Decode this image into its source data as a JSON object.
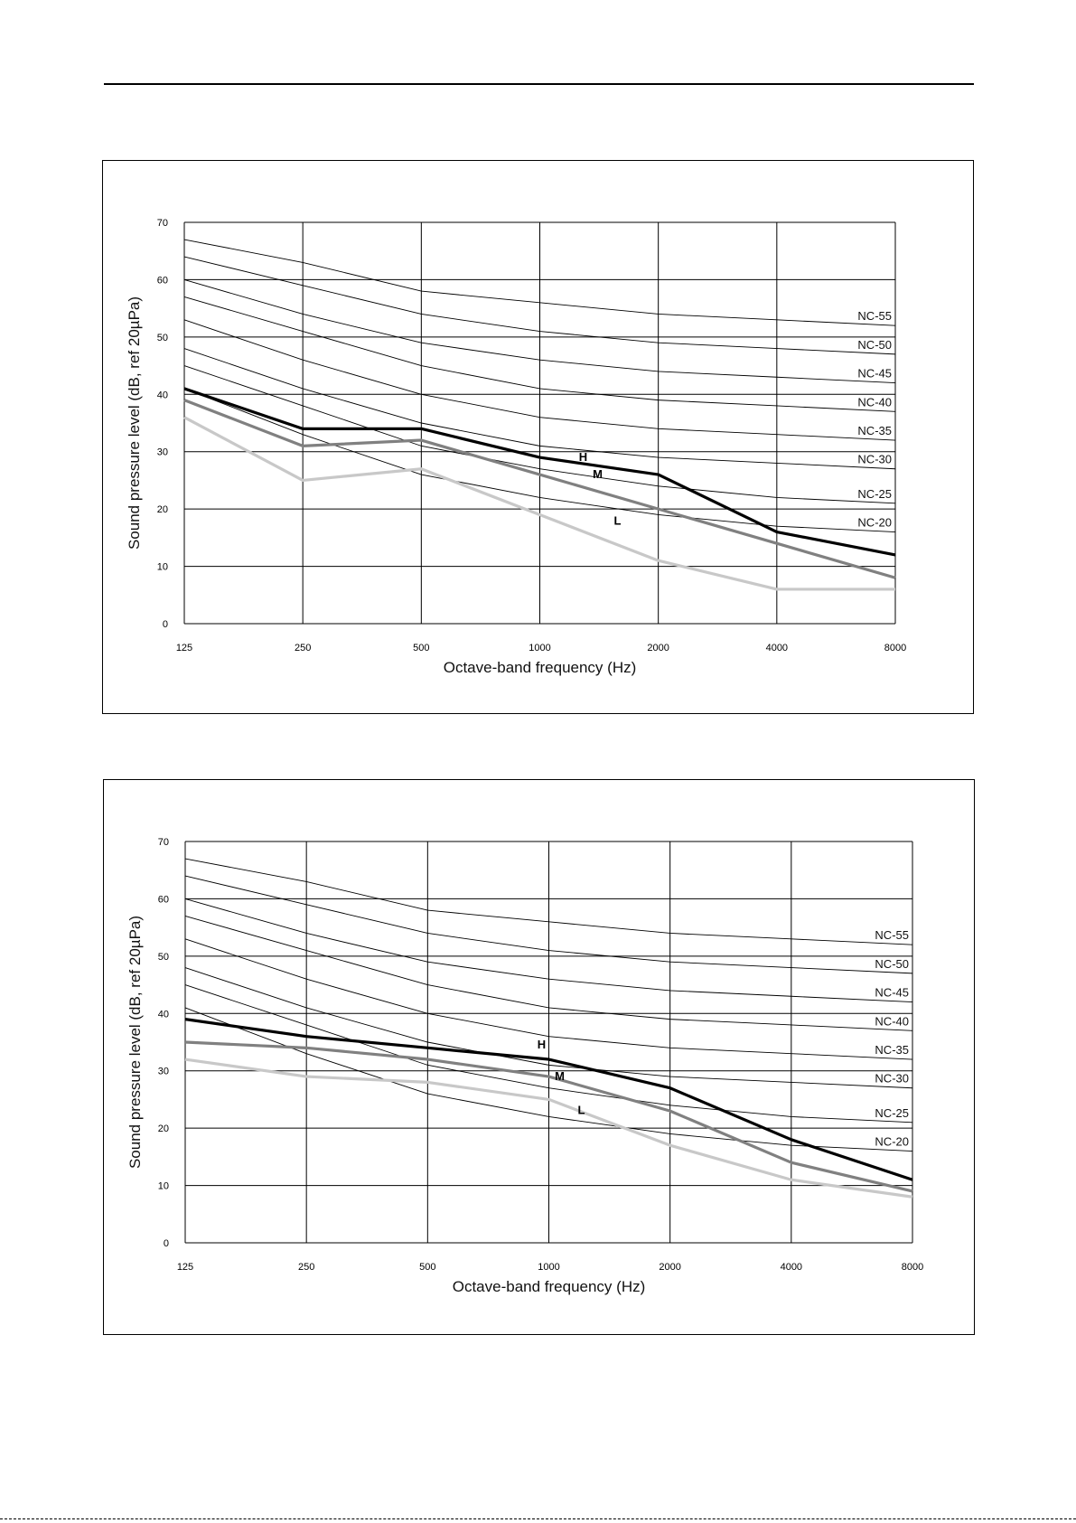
{
  "chart_data": [
    {
      "type": "line",
      "x_scale": "log",
      "x": [
        125,
        250,
        500,
        1000,
        2000,
        4000,
        8000
      ],
      "x_tick_labels": [
        "125",
        "250",
        "500",
        "1000",
        "2000",
        "4000",
        "8000"
      ],
      "y_ticks": [
        0,
        10,
        20,
        30,
        40,
        50,
        60,
        70
      ],
      "ylim": [
        0,
        70
      ],
      "xlabel": "Octave-band frequency (Hz)",
      "ylabel": "Sound pressure level (dB, ref 20µPa)",
      "grid": true,
      "nc_curves": [
        {
          "name": "NC-55",
          "values": [
            67,
            63,
            58,
            56,
            54,
            53,
            52
          ]
        },
        {
          "name": "NC-50",
          "values": [
            64,
            59,
            54,
            51,
            49,
            48,
            47
          ]
        },
        {
          "name": "NC-45",
          "values": [
            60,
            54,
            49,
            46,
            44,
            43,
            42
          ]
        },
        {
          "name": "NC-40",
          "values": [
            57,
            51,
            45,
            41,
            39,
            38,
            37
          ]
        },
        {
          "name": "NC-35",
          "values": [
            53,
            46,
            40,
            36,
            34,
            33,
            32
          ]
        },
        {
          "name": "NC-30",
          "values": [
            48,
            41,
            35,
            31,
            29,
            28,
            27
          ]
        },
        {
          "name": "NC-25",
          "values": [
            45,
            38,
            31,
            27,
            24,
            22,
            21
          ]
        },
        {
          "name": "NC-20",
          "values": [
            41,
            33,
            26,
            22,
            19,
            17,
            16
          ]
        }
      ],
      "series": [
        {
          "name": "H",
          "color": "#000000",
          "values": [
            41,
            34,
            34,
            29,
            26,
            16,
            12
          ]
        },
        {
          "name": "M",
          "color": "#808080",
          "values": [
            39,
            31,
            32,
            26,
            20,
            14,
            8
          ]
        },
        {
          "name": "L",
          "color": "#c8c8c8",
          "values": [
            36,
            25,
            27,
            19,
            11,
            6,
            6
          ]
        }
      ]
    },
    {
      "type": "line",
      "x_scale": "log",
      "x": [
        125,
        250,
        500,
        1000,
        2000,
        4000,
        8000
      ],
      "x_tick_labels": [
        "125",
        "250",
        "500",
        "1000",
        "2000",
        "4000",
        "8000"
      ],
      "y_ticks": [
        0,
        10,
        20,
        30,
        40,
        50,
        60,
        70
      ],
      "ylim": [
        0,
        70
      ],
      "xlabel": "Octave-band frequency (Hz)",
      "ylabel": "Sound pressure level (dB, ref 20µPa)",
      "grid": true,
      "nc_curves": [
        {
          "name": "NC-55",
          "values": [
            67,
            63,
            58,
            56,
            54,
            53,
            52
          ]
        },
        {
          "name": "NC-50",
          "values": [
            64,
            59,
            54,
            51,
            49,
            48,
            47
          ]
        },
        {
          "name": "NC-45",
          "values": [
            60,
            54,
            49,
            46,
            44,
            43,
            42
          ]
        },
        {
          "name": "NC-40",
          "values": [
            57,
            51,
            45,
            41,
            39,
            38,
            37
          ]
        },
        {
          "name": "NC-35",
          "values": [
            53,
            46,
            40,
            36,
            34,
            33,
            32
          ]
        },
        {
          "name": "NC-30",
          "values": [
            48,
            41,
            35,
            31,
            29,
            28,
            27
          ]
        },
        {
          "name": "NC-25",
          "values": [
            45,
            38,
            31,
            27,
            24,
            22,
            21
          ]
        },
        {
          "name": "NC-20",
          "values": [
            41,
            33,
            26,
            22,
            19,
            17,
            16
          ]
        }
      ],
      "series": [
        {
          "name": "H",
          "color": "#000000",
          "values": [
            39,
            36,
            34,
            32,
            27,
            18,
            11
          ]
        },
        {
          "name": "M",
          "color": "#808080",
          "values": [
            35,
            34,
            32,
            29,
            23,
            14,
            9
          ]
        },
        {
          "name": "L",
          "color": "#c8c8c8",
          "values": [
            32,
            29,
            28,
            25,
            17,
            11,
            8
          ]
        }
      ]
    }
  ]
}
